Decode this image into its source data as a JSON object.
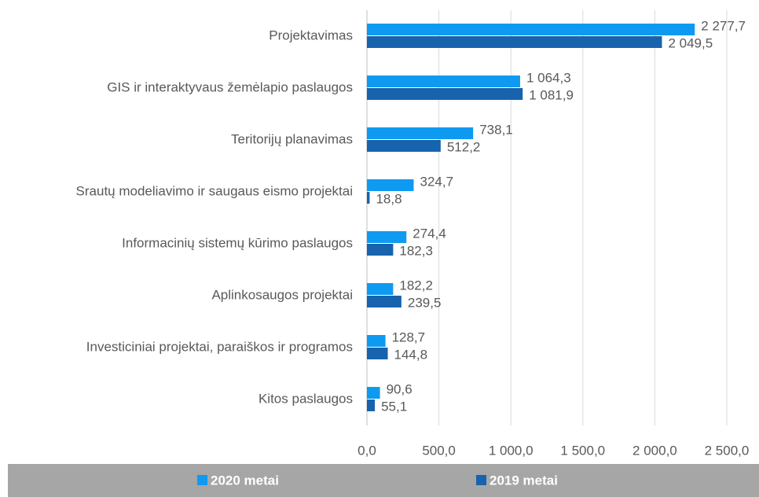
{
  "chart_data": {
    "type": "barh",
    "categories": [
      "Projektavimas",
      "GIS ir interaktyvaus žemėlapio paslaugos",
      "Teritorijų planavimas",
      "Srautų modeliavimo ir saugaus eismo projektai",
      "Informacinių sistemų kūrimo paslaugos",
      "Aplinkosaugos projektai",
      "Investiciniai projektai, paraiškos ir programos",
      "Kitos paslaugos"
    ],
    "series": [
      {
        "name": "2020 metai",
        "color": "#0f9af2",
        "values": [
          2277.7,
          1064.3,
          738.1,
          324.7,
          274.4,
          182.2,
          128.7,
          90.6
        ],
        "value_labels": [
          "2 277,7",
          "1 064,3",
          "738,1",
          "324,7",
          "274,4",
          "182,2",
          "128,7",
          "90,6"
        ]
      },
      {
        "name": "2019 metai",
        "color": "#1763ad",
        "values": [
          2049.5,
          1081.9,
          512.2,
          18.8,
          182.3,
          239.5,
          144.8,
          55.1
        ],
        "value_labels": [
          "2 049,5",
          "1 081,9",
          "512,2",
          "18,8",
          "182,3",
          "239,5",
          "144,8",
          "55,1"
        ]
      }
    ],
    "xlim": [
      0,
      2500
    ],
    "xticks": [
      {
        "value": 0,
        "label": "0,0"
      },
      {
        "value": 500,
        "label": "500,0"
      },
      {
        "value": 1000,
        "label": "1 000,0"
      },
      {
        "value": 1500,
        "label": "1 500,0"
      },
      {
        "value": 2000,
        "label": "2 000,0"
      },
      {
        "value": 2500,
        "label": "2 500,0"
      }
    ],
    "grid": true,
    "legend": "bottom"
  }
}
